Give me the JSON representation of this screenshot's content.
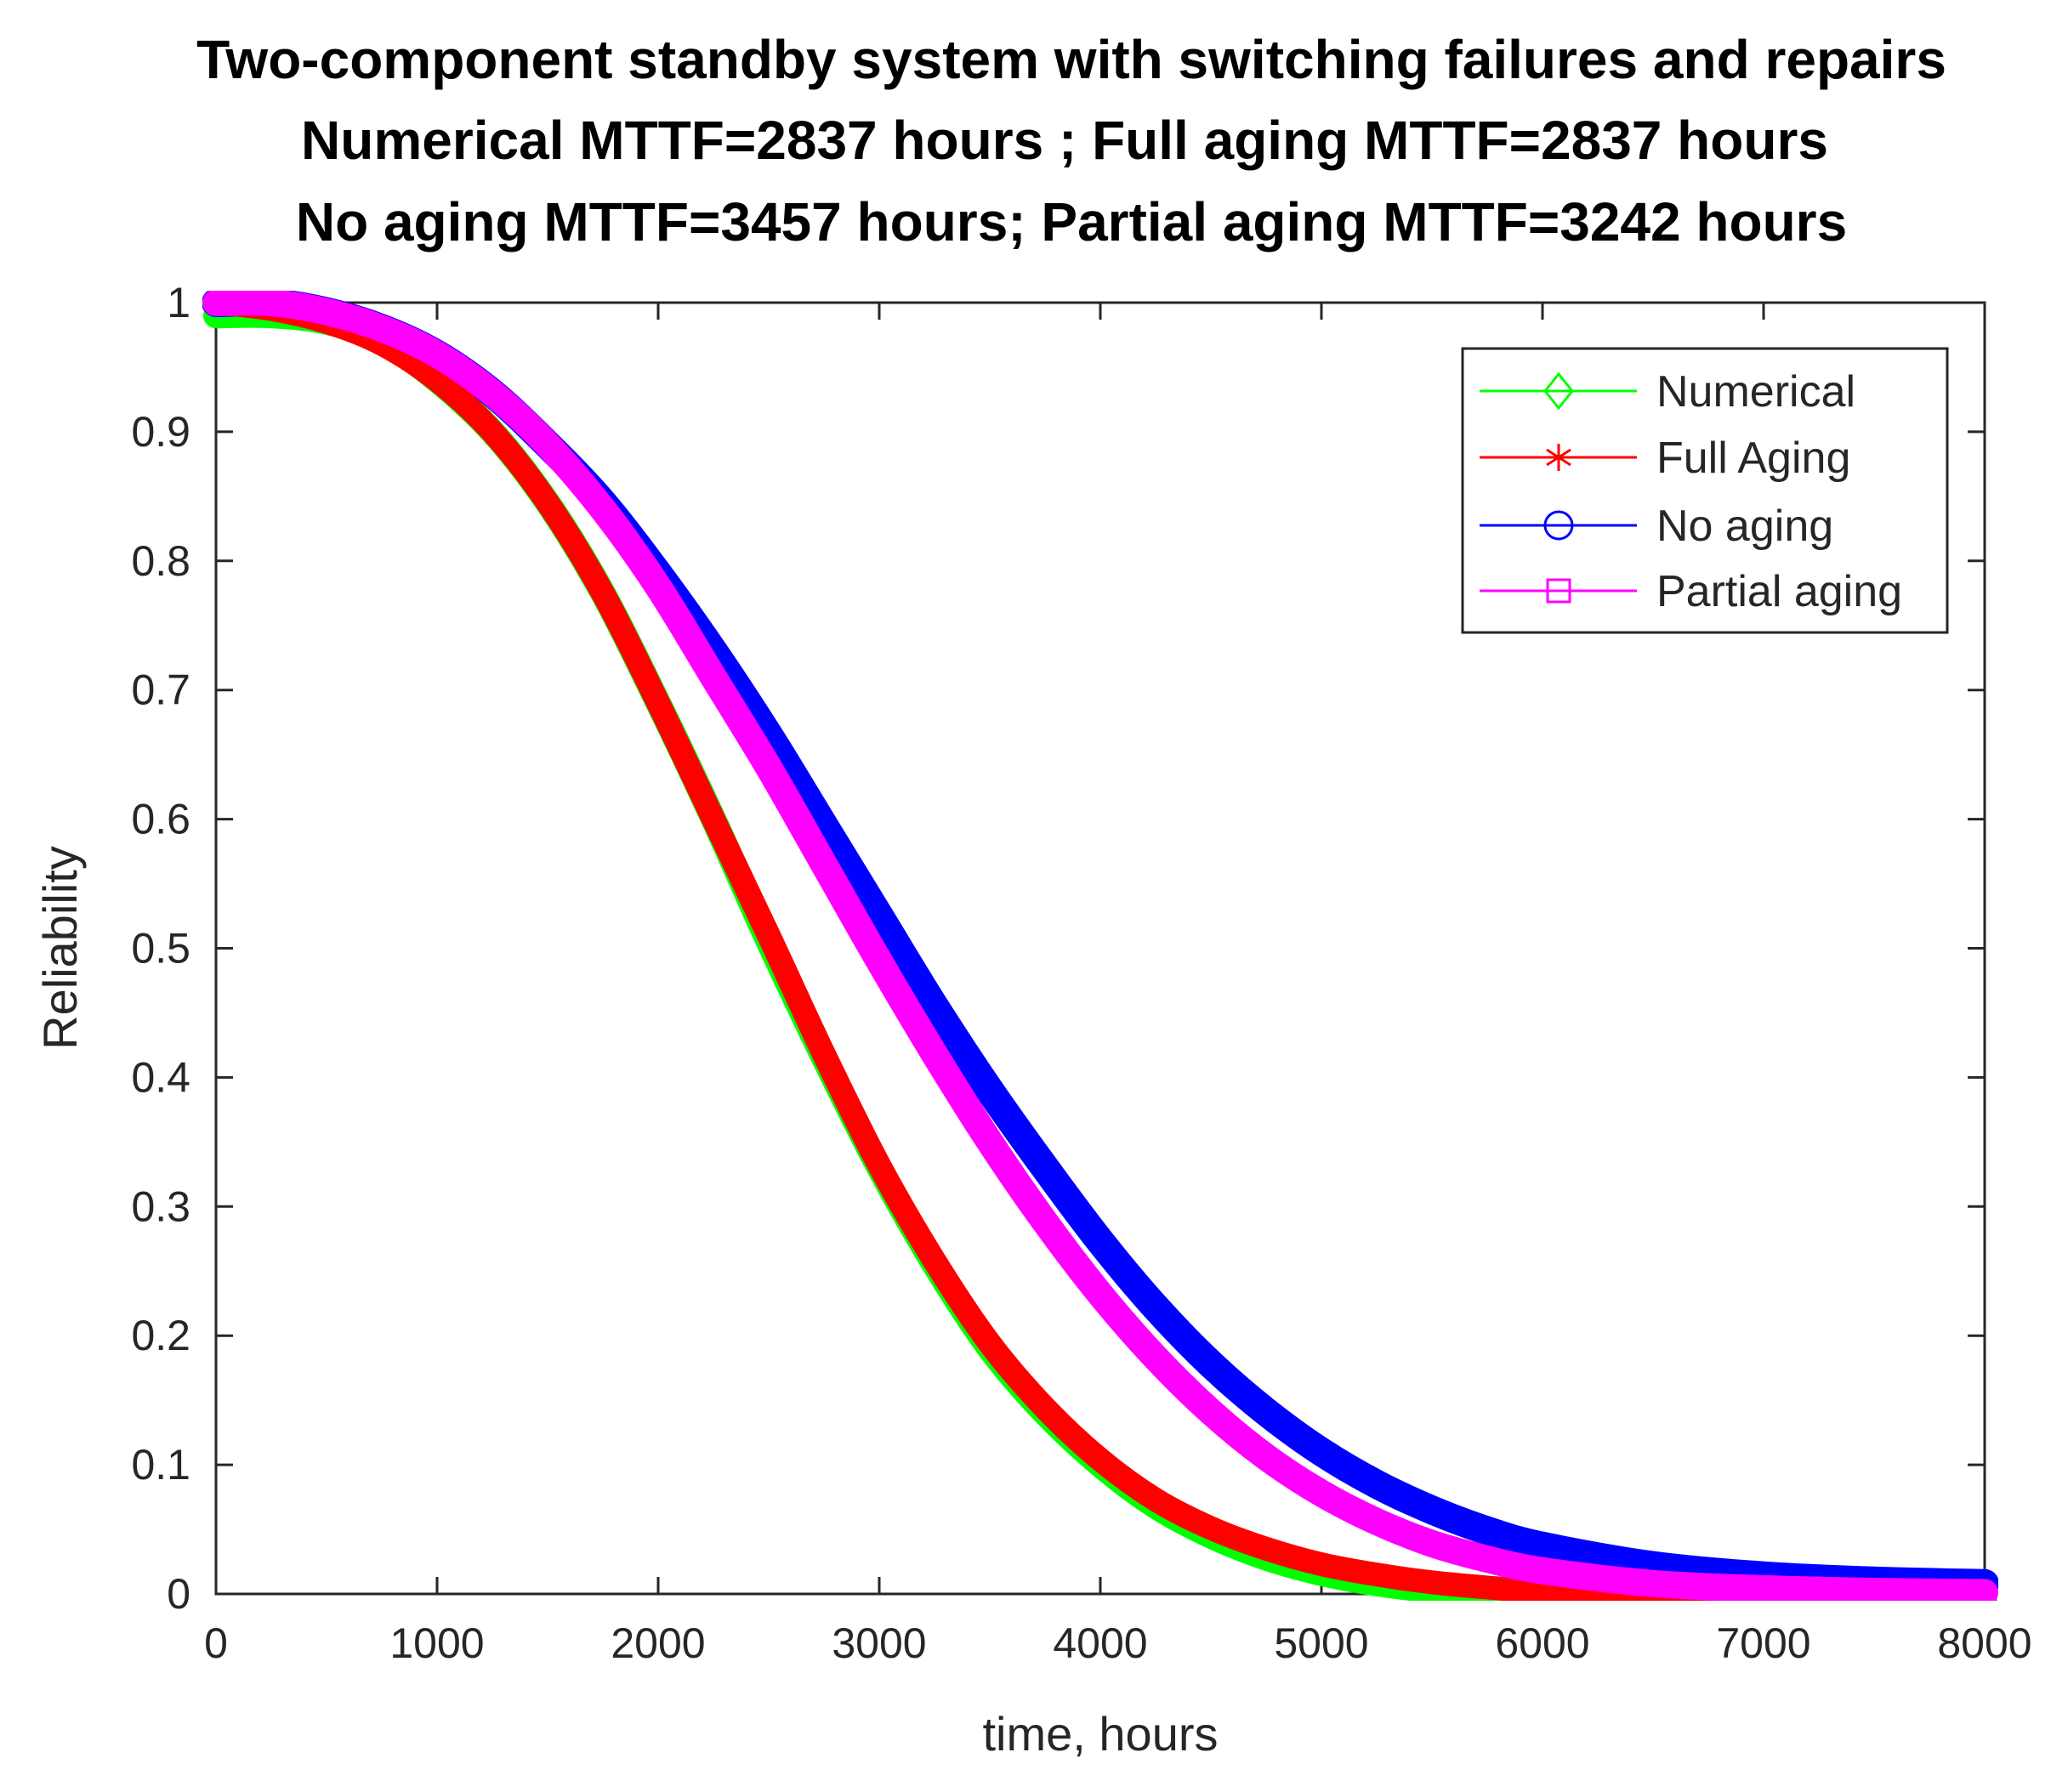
{
  "chart_data": {
    "type": "line",
    "title": [
      "Two-component standby system with switching failures and repairs",
      "Numerical MTTF=2837 hours ; Full aging MTTF=2837 hours",
      "No aging MTTF=3457 hours; Partial aging MTTF=3242 hours"
    ],
    "xlabel": "time, hours",
    "ylabel": "Reliability",
    "xlim": [
      0,
      8000
    ],
    "ylim": [
      0,
      1
    ],
    "xticks": [
      0,
      1000,
      2000,
      3000,
      4000,
      5000,
      6000,
      7000,
      8000
    ],
    "xtick_labels": [
      "0",
      "1000",
      "2000",
      "3000",
      "4000",
      "5000",
      "6000",
      "7000",
      "8000"
    ],
    "yticks": [
      0,
      0.1,
      0.2,
      0.3,
      0.4,
      0.5,
      0.6,
      0.7,
      0.8,
      0.9,
      1
    ],
    "ytick_labels": [
      "0",
      "0.1",
      "0.2",
      "0.3",
      "0.4",
      "0.5",
      "0.6",
      "0.7",
      "0.8",
      "0.9",
      "1"
    ],
    "grid": false,
    "legend_position": "top-right",
    "series": [
      {
        "name": "Numerical",
        "color": "#00ff00",
        "marker": "diamond",
        "x": [
          0,
          250,
          500,
          750,
          1000,
          1250,
          1500,
          1750,
          2000,
          2250,
          2500,
          2750,
          3000,
          3250,
          3500,
          3750,
          4000,
          4250,
          4500,
          4750,
          5000,
          5250,
          5500,
          5750,
          6000,
          6500,
          7000,
          7500,
          8000
        ],
        "y": [
          0.99,
          0.99,
          0.985,
          0.97,
          0.94,
          0.9,
          0.845,
          0.775,
          0.69,
          0.6,
          0.505,
          0.415,
          0.33,
          0.255,
          0.19,
          0.14,
          0.1,
          0.068,
          0.045,
          0.028,
          0.016,
          0.008,
          0.003,
          0.001,
          0.0,
          -0.004,
          -0.006,
          -0.007,
          -0.007
        ]
      },
      {
        "name": "Full Aging",
        "color": "#ff0000",
        "marker": "asterisk",
        "x": [
          0,
          250,
          500,
          750,
          1000,
          1250,
          1500,
          1750,
          2000,
          2250,
          2500,
          2750,
          3000,
          3250,
          3500,
          3750,
          4000,
          4250,
          4500,
          4750,
          5000,
          5250,
          5500,
          5750,
          6000,
          6500,
          7000,
          7500,
          8000
        ],
        "y": [
          1.0,
          0.995,
          0.985,
          0.968,
          0.94,
          0.9,
          0.845,
          0.775,
          0.69,
          0.6,
          0.51,
          0.418,
          0.332,
          0.258,
          0.194,
          0.144,
          0.104,
          0.073,
          0.051,
          0.035,
          0.023,
          0.015,
          0.009,
          0.005,
          0.002,
          -0.001,
          -0.003,
          -0.004,
          -0.004
        ]
      },
      {
        "name": "No aging",
        "color": "#0000ff",
        "marker": "circle",
        "x": [
          0,
          250,
          500,
          750,
          1000,
          1250,
          1500,
          1750,
          2000,
          2250,
          2500,
          2750,
          3000,
          3250,
          3500,
          3750,
          4000,
          4250,
          4500,
          4750,
          5000,
          5250,
          5500,
          5750,
          6000,
          6500,
          7000,
          7500,
          8000
        ],
        "y": [
          1.0,
          1.0,
          0.993,
          0.98,
          0.96,
          0.93,
          0.89,
          0.845,
          0.79,
          0.73,
          0.665,
          0.595,
          0.525,
          0.455,
          0.39,
          0.33,
          0.273,
          0.222,
          0.178,
          0.141,
          0.11,
          0.085,
          0.065,
          0.049,
          0.037,
          0.022,
          0.014,
          0.01,
          0.008
        ]
      },
      {
        "name": "Partial aging",
        "color": "#ff00ff",
        "marker": "square",
        "x": [
          0,
          250,
          500,
          750,
          1000,
          1250,
          1500,
          1750,
          2000,
          2250,
          2500,
          2750,
          3000,
          3250,
          3500,
          3750,
          4000,
          4250,
          4500,
          4750,
          5000,
          5250,
          5500,
          5750,
          6000,
          6500,
          7000,
          7500,
          8000
        ],
        "y": [
          1.0,
          1.0,
          0.993,
          0.98,
          0.96,
          0.93,
          0.89,
          0.84,
          0.78,
          0.71,
          0.64,
          0.565,
          0.49,
          0.418,
          0.35,
          0.288,
          0.232,
          0.183,
          0.141,
          0.106,
          0.078,
          0.056,
          0.039,
          0.027,
          0.018,
          0.008,
          0.004,
          0.002,
          0.001
        ]
      }
    ]
  }
}
